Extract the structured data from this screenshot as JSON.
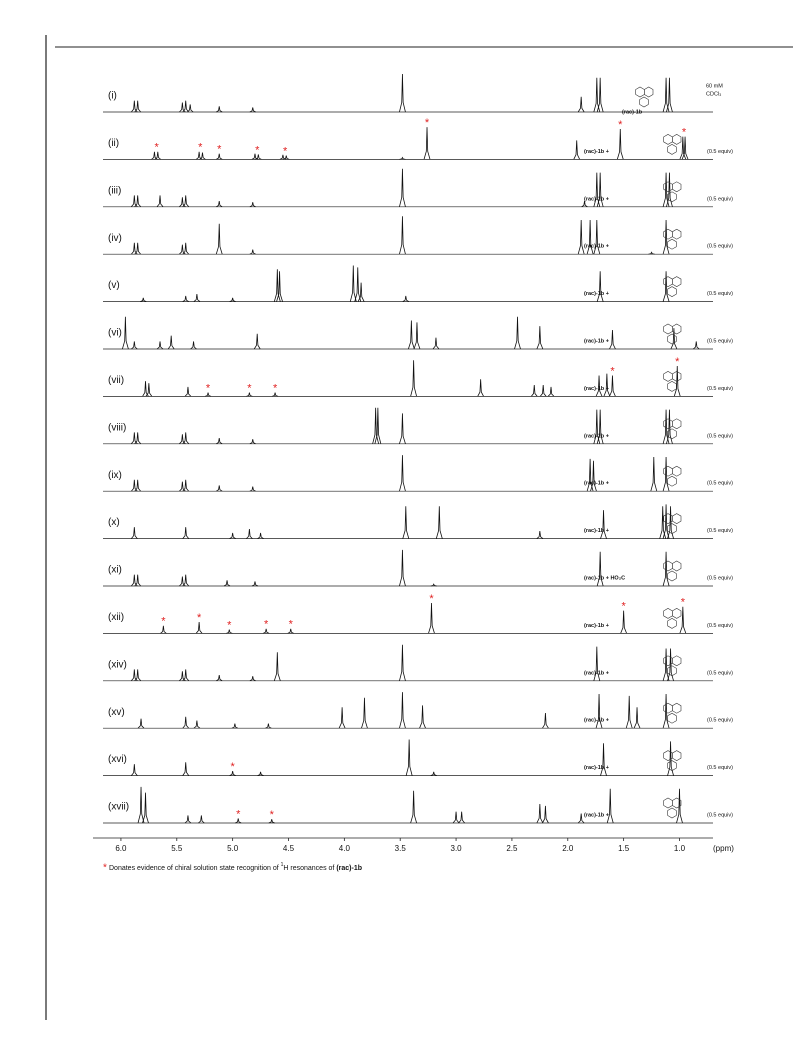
{
  "star": "*",
  "axis": {
    "label": "(ppm)",
    "xlim": [
      6.25,
      0.7
    ],
    "xticks": [
      {
        "value": 6,
        "label": "6.0"
      },
      5.5,
      {
        "value": 5,
        "label": "5.0"
      },
      4.5,
      {
        "value": 4,
        "label": "4.0"
      },
      3.5,
      {
        "value": 3,
        "label": "3.0"
      },
      2.5,
      {
        "value": 2,
        "label": "2.0"
      },
      1.5,
      {
        "value": 1,
        "label": "1.0"
      }
    ]
  },
  "spectra": [
    {
      "label": "(i)",
      "reagent": "(rac)-1b",
      "notes": [
        "60 mM",
        "CDCl₃"
      ],
      "peaks": [
        [
          5.88,
          0.3
        ],
        [
          5.85,
          0.3
        ],
        [
          5.45,
          0.25
        ],
        [
          5.42,
          0.3
        ],
        [
          5.38,
          0.2
        ],
        [
          5.12,
          0.15
        ],
        [
          4.82,
          0.12
        ],
        [
          3.48,
          1.0
        ],
        [
          1.88,
          0.4
        ],
        [
          1.74,
          0.9
        ],
        [
          1.71,
          0.9
        ],
        [
          1.12,
          0.9
        ],
        [
          1.09,
          0.9
        ]
      ],
      "stars": []
    },
    {
      "label": "(ii)",
      "reagent": "(rac)-1b +",
      "amount": "(0.5 equiv)",
      "peaks": [
        [
          5.7,
          0.2
        ],
        [
          5.67,
          0.2
        ],
        [
          5.3,
          0.2
        ],
        [
          5.27,
          0.18
        ],
        [
          5.12,
          0.15
        ],
        [
          4.8,
          0.15
        ],
        [
          4.77,
          0.13
        ],
        [
          4.55,
          0.12
        ],
        [
          4.52,
          0.1
        ],
        [
          3.48,
          0.05
        ],
        [
          3.26,
          0.85
        ],
        [
          1.92,
          0.5
        ],
        [
          1.53,
          0.8
        ],
        [
          0.97,
          0.6
        ],
        [
          0.95,
          0.6
        ]
      ],
      "stars": [
        5.68,
        5.29,
        5.12,
        4.78,
        4.53,
        3.26,
        1.53,
        0.96
      ]
    },
    {
      "label": "(iii)",
      "reagent": "(rac)-1b +",
      "amount": "(0.5 equiv)",
      "peaks": [
        [
          5.88,
          0.3
        ],
        [
          5.85,
          0.3
        ],
        [
          5.65,
          0.3
        ],
        [
          5.45,
          0.25
        ],
        [
          5.42,
          0.3
        ],
        [
          5.12,
          0.15
        ],
        [
          4.82,
          0.12
        ],
        [
          3.48,
          1.0
        ],
        [
          1.85,
          0.15
        ],
        [
          1.74,
          0.9
        ],
        [
          1.71,
          0.9
        ],
        [
          1.12,
          0.9
        ],
        [
          1.09,
          0.9
        ]
      ],
      "stars": []
    },
    {
      "label": "(iv)",
      "reagent": "(rac)-1b +",
      "amount": "(0.5 equiv)",
      "peaks": [
        [
          5.88,
          0.3
        ],
        [
          5.85,
          0.3
        ],
        [
          5.45,
          0.25
        ],
        [
          5.42,
          0.3
        ],
        [
          5.12,
          0.8
        ],
        [
          4.82,
          0.12
        ],
        [
          3.48,
          1.0
        ],
        [
          1.88,
          0.9
        ],
        [
          1.8,
          0.9
        ],
        [
          1.74,
          0.9
        ],
        [
          1.25,
          0.05
        ],
        [
          1.12,
          0.9
        ]
      ],
      "stars": []
    },
    {
      "label": "(v)",
      "reagent": "(rac)-1b +",
      "amount": "(0.5 equiv)",
      "peaks": [
        [
          5.8,
          0.1
        ],
        [
          5.42,
          0.15
        ],
        [
          5.32,
          0.2
        ],
        [
          5.0,
          0.1
        ],
        [
          4.6,
          0.85
        ],
        [
          4.58,
          0.8
        ],
        [
          3.92,
          0.95
        ],
        [
          3.88,
          0.9
        ],
        [
          3.85,
          0.5
        ],
        [
          3.45,
          0.15
        ],
        [
          1.71,
          0.8
        ],
        [
          1.12,
          0.8
        ]
      ],
      "stars": []
    },
    {
      "label": "(vi)",
      "reagent": "(rac)-1b +",
      "amount": "(0.5 equiv)",
      "peaks": [
        [
          5.96,
          0.85
        ],
        [
          5.88,
          0.2
        ],
        [
          5.65,
          0.2
        ],
        [
          5.55,
          0.35
        ],
        [
          5.35,
          0.2
        ],
        [
          4.78,
          0.4
        ],
        [
          3.4,
          0.75
        ],
        [
          3.35,
          0.7
        ],
        [
          3.18,
          0.3
        ],
        [
          2.45,
          0.85
        ],
        [
          2.25,
          0.6
        ],
        [
          1.6,
          0.5
        ],
        [
          1.05,
          0.55
        ],
        [
          0.85,
          0.2
        ]
      ],
      "stars": []
    },
    {
      "label": "(vii)",
      "reagent": "(rac)-1b +",
      "amount": "(0.5 equiv)",
      "peaks": [
        [
          5.78,
          0.4
        ],
        [
          5.75,
          0.35
        ],
        [
          5.4,
          0.25
        ],
        [
          5.22,
          0.1
        ],
        [
          4.85,
          0.1
        ],
        [
          4.62,
          0.1
        ],
        [
          3.38,
          0.95
        ],
        [
          2.78,
          0.45
        ],
        [
          2.3,
          0.3
        ],
        [
          2.22,
          0.3
        ],
        [
          2.15,
          0.25
        ],
        [
          1.72,
          0.55
        ],
        [
          1.65,
          0.6
        ],
        [
          1.6,
          0.55
        ],
        [
          1.02,
          0.8
        ]
      ],
      "stars": [
        5.22,
        4.85,
        4.62,
        1.6,
        1.02
      ]
    },
    {
      "label": "(viii)",
      "reagent": "(rac)-1b +",
      "amount": "(0.5 equiv)",
      "peaks": [
        [
          5.88,
          0.3
        ],
        [
          5.85,
          0.3
        ],
        [
          5.45,
          0.25
        ],
        [
          5.42,
          0.3
        ],
        [
          5.12,
          0.15
        ],
        [
          4.82,
          0.12
        ],
        [
          3.72,
          0.95
        ],
        [
          3.7,
          0.95
        ],
        [
          3.48,
          0.8
        ],
        [
          1.74,
          0.9
        ],
        [
          1.71,
          0.9
        ],
        [
          1.12,
          0.9
        ],
        [
          1.09,
          0.9
        ]
      ],
      "stars": []
    },
    {
      "label": "(ix)",
      "reagent": "(rac)-1b +",
      "amount": "(0.5 equiv)",
      "peaks": [
        [
          5.88,
          0.3
        ],
        [
          5.85,
          0.3
        ],
        [
          5.45,
          0.25
        ],
        [
          5.42,
          0.3
        ],
        [
          5.12,
          0.15
        ],
        [
          4.82,
          0.12
        ],
        [
          3.48,
          0.95
        ],
        [
          1.8,
          0.85
        ],
        [
          1.77,
          0.8
        ],
        [
          1.23,
          0.9
        ],
        [
          1.12,
          0.9
        ]
      ],
      "stars": []
    },
    {
      "label": "(x)",
      "reagent": "(rac)-1b +",
      "amount": "(0.5 equiv)",
      "peaks": [
        [
          5.88,
          0.3
        ],
        [
          5.42,
          0.3
        ],
        [
          5.0,
          0.15
        ],
        [
          4.85,
          0.25
        ],
        [
          4.75,
          0.15
        ],
        [
          3.45,
          0.85
        ],
        [
          3.15,
          0.85
        ],
        [
          2.25,
          0.2
        ],
        [
          1.68,
          0.75
        ],
        [
          1.15,
          0.85
        ],
        [
          1.12,
          0.9
        ],
        [
          1.08,
          0.85
        ]
      ],
      "stars": []
    },
    {
      "label": "(xi)",
      "reagent": "(rac)-1b + HO₂C",
      "amount": "(0.5 equiv)",
      "peaks": [
        [
          5.88,
          0.3
        ],
        [
          5.85,
          0.3
        ],
        [
          5.45,
          0.25
        ],
        [
          5.42,
          0.3
        ],
        [
          5.05,
          0.15
        ],
        [
          4.8,
          0.12
        ],
        [
          3.48,
          0.95
        ],
        [
          3.2,
          0.05
        ],
        [
          1.71,
          0.9
        ],
        [
          1.12,
          0.9
        ]
      ],
      "stars": []
    },
    {
      "label": "(xii)",
      "reagent": "(rac)-1b +",
      "amount": "(0.5 equiv)",
      "peaks": [
        [
          5.62,
          0.2
        ],
        [
          5.3,
          0.3
        ],
        [
          5.03,
          0.1
        ],
        [
          4.7,
          0.12
        ],
        [
          4.48,
          0.12
        ],
        [
          3.22,
          0.8
        ],
        [
          1.5,
          0.6
        ],
        [
          0.97,
          0.7
        ]
      ],
      "stars": [
        5.62,
        5.3,
        5.03,
        4.7,
        4.48,
        3.22,
        1.5,
        0.97
      ]
    },
    {
      "label": "(xiv)",
      "reagent": "(rac)-1b +",
      "amount": "(0.5 equiv)",
      "peaks": [
        [
          5.88,
          0.3
        ],
        [
          5.85,
          0.3
        ],
        [
          5.45,
          0.25
        ],
        [
          5.42,
          0.3
        ],
        [
          5.12,
          0.15
        ],
        [
          4.82,
          0.12
        ],
        [
          4.6,
          0.75
        ],
        [
          3.48,
          0.95
        ],
        [
          1.74,
          0.9
        ],
        [
          1.12,
          0.85
        ],
        [
          1.08,
          0.85
        ]
      ],
      "stars": []
    },
    {
      "label": "(xv)",
      "reagent": "(rac)-1b +",
      "amount": "(0.5 equiv)",
      "peaks": [
        [
          5.82,
          0.25
        ],
        [
          5.42,
          0.3
        ],
        [
          5.32,
          0.2
        ],
        [
          4.98,
          0.12
        ],
        [
          4.68,
          0.12
        ],
        [
          4.02,
          0.55
        ],
        [
          3.82,
          0.8
        ],
        [
          3.48,
          0.95
        ],
        [
          3.3,
          0.6
        ],
        [
          2.2,
          0.4
        ],
        [
          1.72,
          0.9
        ],
        [
          1.45,
          0.85
        ],
        [
          1.38,
          0.55
        ],
        [
          1.12,
          0.9
        ]
      ],
      "stars": []
    },
    {
      "label": "(xvi)",
      "reagent": "(rac)-1b +",
      "amount": "(0.5 equiv)",
      "peaks": [
        [
          5.88,
          0.3
        ],
        [
          5.42,
          0.35
        ],
        [
          5.0,
          0.12
        ],
        [
          4.75,
          0.1
        ],
        [
          3.42,
          0.95
        ],
        [
          3.2,
          0.1
        ],
        [
          1.68,
          0.85
        ],
        [
          1.08,
          0.9
        ]
      ],
      "stars": [
        5.0
      ]
    },
    {
      "label": "(xvii)",
      "reagent": "(rac)-1b +",
      "amount": "(0.5 equiv)",
      "peaks": [
        [
          5.82,
          0.95
        ],
        [
          5.78,
          0.8
        ],
        [
          5.4,
          0.2
        ],
        [
          5.28,
          0.2
        ],
        [
          4.95,
          0.12
        ],
        [
          4.65,
          0.1
        ],
        [
          3.38,
          0.85
        ],
        [
          3.0,
          0.3
        ],
        [
          2.95,
          0.3
        ],
        [
          2.25,
          0.5
        ],
        [
          2.2,
          0.45
        ],
        [
          1.88,
          0.25
        ],
        [
          1.62,
          0.9
        ],
        [
          1.0,
          0.9
        ]
      ],
      "stars": [
        4.95,
        4.65
      ]
    }
  ],
  "footnote": {
    "star": "*",
    "text1": "Donates evidence of chiral solution state recognition of ",
    "sup": "1",
    "text2": "H resonances of ",
    "bold": "(rac)-1b"
  }
}
